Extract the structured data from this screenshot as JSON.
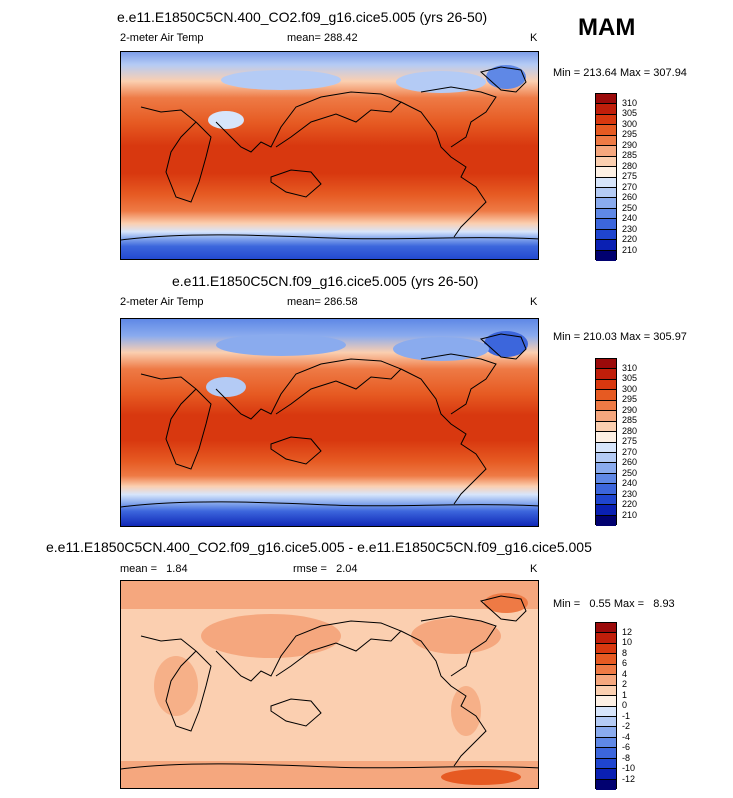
{
  "season": "MAM",
  "panels": [
    {
      "title": "e.e11.E1850C5CN.400_CO2.f09_g16.cice5.005 (yrs 26-50)",
      "left_label": "2-meter Air Temp",
      "center_label": "mean= 288.42",
      "units": "K",
      "minmax": "Min = 213.64 Max = 307.94",
      "colorbar_levels": [
        "310",
        "305",
        "300",
        "295",
        "290",
        "285",
        "280",
        "275",
        "270",
        "260",
        "250",
        "240",
        "230",
        "220",
        "210"
      ],
      "colorbar_colors": [
        "#9b0a0a",
        "#c01e0a",
        "#d8380f",
        "#e65a22",
        "#ee7a45",
        "#f5a77e",
        "#fbcfb0",
        "#fdf0e4",
        "#d7e5fb",
        "#b4cbf5",
        "#8aabee",
        "#5f88e6",
        "#3c66dc",
        "#1f45cf",
        "#0a20b3",
        "#010170"
      ]
    },
    {
      "title": "e.e11.E1850C5CN.f09_g16.cice5.005 (yrs 26-50)",
      "left_label": "2-meter Air Temp",
      "center_label": "mean= 286.58",
      "units": "K",
      "minmax": "Min = 210.03 Max = 305.97",
      "colorbar_levels": [
        "310",
        "305",
        "300",
        "295",
        "290",
        "285",
        "280",
        "275",
        "270",
        "260",
        "250",
        "240",
        "230",
        "220",
        "210"
      ],
      "colorbar_colors": [
        "#9b0a0a",
        "#c01e0a",
        "#d8380f",
        "#e65a22",
        "#ee7a45",
        "#f5a77e",
        "#fbcfb0",
        "#fdf0e4",
        "#d7e5fb",
        "#b4cbf5",
        "#8aabee",
        "#5f88e6",
        "#3c66dc",
        "#1f45cf",
        "#0a20b3",
        "#010170"
      ]
    },
    {
      "title": "e.e11.E1850C5CN.400_CO2.f09_g16.cice5.005 - e.e11.E1850C5CN.f09_g16.cice5.005",
      "left_label": "mean =   1.84",
      "center_label": "rmse =   2.04",
      "units": "K",
      "minmax": "Min =   0.55 Max =   8.93",
      "colorbar_levels": [
        "12",
        "10",
        "8",
        "6",
        "4",
        "2",
        "1",
        "0",
        "-1",
        "-2",
        "-4",
        "-6",
        "-8",
        "-10",
        "-12"
      ],
      "colorbar_colors": [
        "#9b0a0a",
        "#c01e0a",
        "#d8380f",
        "#e65a22",
        "#ee7a45",
        "#f5a77e",
        "#fbcfb0",
        "#fdf0e4",
        "#d7e5fb",
        "#b4cbf5",
        "#8aabee",
        "#5f88e6",
        "#3c66dc",
        "#1f45cf",
        "#0a20b3",
        "#010170"
      ]
    }
  ]
}
